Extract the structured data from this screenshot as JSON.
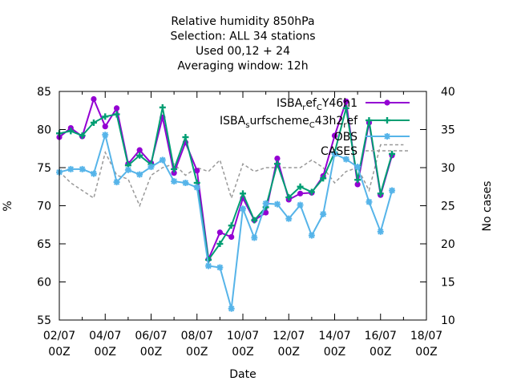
{
  "chart_data": {
    "type": "line",
    "title_lines": [
      "Relative humidity 850hPa",
      "Selection: ALL      34 stations",
      "Used  00,12  + 24",
      "Averaging window: 12h"
    ],
    "xlabel": "Date",
    "ylabel": "%",
    "y2label": "No cases",
    "ylim": [
      55,
      85
    ],
    "y2lim": [
      10,
      40
    ],
    "yticks": [
      55,
      60,
      65,
      70,
      75,
      80,
      85
    ],
    "y2ticks": [
      10,
      15,
      20,
      25,
      30,
      35,
      40
    ],
    "xlim": [
      0,
      16
    ],
    "xticks": [
      {
        "x": 0,
        "line1": "02/07",
        "line2": "00Z"
      },
      {
        "x": 2,
        "line1": "04/07",
        "line2": "00Z"
      },
      {
        "x": 4,
        "line1": "06/07",
        "line2": "00Z"
      },
      {
        "x": 6,
        "line1": "08/07",
        "line2": "00Z"
      },
      {
        "x": 8,
        "line1": "10/07",
        "line2": "00Z"
      },
      {
        "x": 10,
        "line1": "12/07",
        "line2": "00Z"
      },
      {
        "x": 12,
        "line1": "14/07",
        "line2": "00Z"
      },
      {
        "x": 14,
        "line1": "16/07",
        "line2": "00Z"
      },
      {
        "x": 16,
        "line1": "18/07",
        "line2": "00Z"
      }
    ],
    "grid": false,
    "legend_position": "top-right",
    "x": [
      0,
      0.5,
      1,
      1.5,
      2,
      2.5,
      3,
      3.5,
      4,
      4.5,
      5,
      5.5,
      6,
      6.5,
      7,
      7.5,
      8,
      8.5,
      9,
      9.5,
      10,
      10.5,
      11,
      11.5,
      12,
      12.5,
      13,
      13.5,
      14,
      14.5
    ],
    "series": [
      {
        "name": "ISBA_ref_CY46h1",
        "legend_base": [
          "ISBA",
          "ef",
          "Y46h1"
        ],
        "legend_subs": [
          "r",
          "C"
        ],
        "color": "#9400d3",
        "marker": "circle",
        "values": [
          79.0,
          80.2,
          79.1,
          84.0,
          80.4,
          82.8,
          75.5,
          77.3,
          75.6,
          81.6,
          74.3,
          78.3,
          74.6,
          63.0,
          66.5,
          65.9,
          71.0,
          68.1,
          69.1,
          76.2,
          70.8,
          71.6,
          71.7,
          73.9,
          79.2,
          83.7,
          72.8,
          80.9,
          71.4,
          76.6
        ]
      },
      {
        "name": "ISBA_surfscheme_C43h2_ref",
        "legend_base": [
          "ISBA",
          "urfscheme",
          "43h2",
          "ef"
        ],
        "legend_subs": [
          "s",
          "C",
          "r"
        ],
        "color": "#009e73",
        "marker": "plus",
        "values": [
          79.5,
          79.8,
          79.2,
          80.9,
          81.7,
          82.0,
          75.3,
          76.6,
          75.4,
          82.9,
          74.8,
          79.0,
          73.0,
          62.9,
          65.0,
          67.4,
          71.6,
          68.1,
          69.8,
          75.5,
          71.1,
          72.5,
          71.8,
          73.6,
          77.0,
          82.8,
          73.4,
          81.2,
          71.6,
          76.8
        ]
      },
      {
        "name": "OBS",
        "legend_base": [
          "OBS"
        ],
        "legend_subs": [],
        "color": "#56b4e9",
        "marker": "star",
        "values": [
          74.4,
          74.8,
          74.8,
          74.2,
          79.3,
          73.1,
          74.7,
          74.1,
          75.1,
          76.0,
          73.2,
          73.0,
          72.4,
          62.1,
          61.9,
          56.5,
          69.6,
          65.8,
          70.3,
          70.2,
          68.3,
          70.1,
          66.1,
          68.9,
          76.8,
          76.1,
          75.1,
          70.5,
          66.6,
          72.0
        ]
      },
      {
        "name": "CASES",
        "legend_base": [
          "CASES"
        ],
        "legend_subs": [],
        "color": "#999999",
        "marker": "none",
        "axis": "y2",
        "dashed": true,
        "x": [
          0,
          0.5,
          1,
          1.5,
          2,
          2.5,
          3,
          3.5,
          4,
          4.5,
          5,
          5.5,
          6,
          6.5,
          7,
          7.5,
          8,
          8.5,
          9,
          9.5,
          10,
          10.5,
          11,
          11.5,
          12,
          12.5,
          13,
          13.5,
          14,
          14.5,
          15
        ],
        "values": [
          29.5,
          28,
          27,
          26,
          32,
          29,
          28.5,
          25,
          29,
          30,
          30.5,
          29,
          30,
          29.5,
          31,
          26,
          30.5,
          29.5,
          30,
          30,
          30,
          30,
          31,
          30,
          28,
          29.5,
          30,
          27,
          33,
          33,
          33
        ]
      }
    ]
  }
}
